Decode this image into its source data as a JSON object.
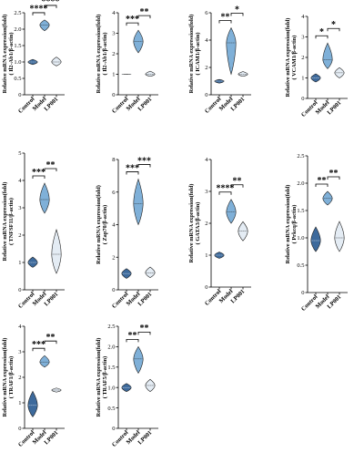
{
  "chart_data": [
    {
      "type": "violin",
      "ylabel": "Relative mRNA expression(fold)",
      "ylabel2": "( Il2-Ab1/β-actin)",
      "categories": [
        "Control",
        "Model",
        "LP001"
      ],
      "ylim": [
        0,
        2.5
      ],
      "yticks": [
        "0",
        "0.5",
        "1.0",
        "1.5",
        "2.0",
        "2.5"
      ],
      "colors": [
        "#3d6a9c",
        "#7fb0d8",
        "#e4ecf4"
      ],
      "series": [
        {
          "name": "Control",
          "min": 0.92,
          "median": 1.0,
          "max": 1.08
        },
        {
          "name": "Model",
          "min": 1.95,
          "median": 2.13,
          "max": 2.28
        },
        {
          "name": "LP001",
          "min": 0.88,
          "median": 1.0,
          "max": 1.15
        }
      ],
      "significance": [
        {
          "from": 0,
          "to": 1,
          "label": "****"
        },
        {
          "from": 1,
          "to": 2,
          "label": "****"
        }
      ]
    },
    {
      "type": "violin",
      "ylabel": "Relative mRNA expression(fold)",
      "ylabel2": "( Il2-Ab1/β-actin)",
      "categories": [
        "Control",
        "Model",
        "LP001"
      ],
      "ylim": [
        0,
        4
      ],
      "yticks": [
        "0",
        "1",
        "2",
        "3",
        "4"
      ],
      "colors": [
        "#3d6a9c",
        "#7fb0d8",
        "#e4ecf4"
      ],
      "series": [
        {
          "name": "Control",
          "min": 0.99,
          "median": 1.0,
          "max": 1.01
        },
        {
          "name": "Model",
          "min": 2.05,
          "median": 2.6,
          "max": 3.15
        },
        {
          "name": "LP001",
          "min": 0.9,
          "median": 1.0,
          "max": 1.15
        }
      ],
      "significance": [
        {
          "from": 0,
          "to": 1,
          "label": "***"
        },
        {
          "from": 1,
          "to": 2,
          "label": "**"
        }
      ]
    },
    {
      "type": "violin",
      "ylabel": "Relative mRNA expression(fold)",
      "ylabel2": "( ICAM1/β-actin)",
      "categories": [
        "Control",
        "Model",
        "LP001"
      ],
      "ylim": [
        0,
        6
      ],
      "yticks": [
        "0",
        "2",
        "4",
        "6"
      ],
      "colors": [
        "#3d6a9c",
        "#7fb0d8",
        "#e4ecf4"
      ],
      "series": [
        {
          "name": "Control",
          "min": 0.85,
          "median": 1.0,
          "max": 1.12
        },
        {
          "name": "Model",
          "min": 1.5,
          "median": 3.8,
          "max": 4.9
        },
        {
          "name": "LP001",
          "min": 1.35,
          "median": 1.5,
          "max": 1.7
        }
      ],
      "significance": [
        {
          "from": 0,
          "to": 1,
          "label": "**"
        },
        {
          "from": 1,
          "to": 2,
          "label": "*"
        }
      ]
    },
    {
      "type": "violin",
      "ylabel": "Relative mRNA expression(fold)",
      "ylabel2": "( VCAM1/β-actin)",
      "categories": [
        "Control",
        "Model",
        "LP001"
      ],
      "ylim": [
        0,
        4
      ],
      "yticks": [
        "0",
        "1",
        "2",
        "3",
        "4"
      ],
      "colors": [
        "#3d6a9c",
        "#7fb0d8",
        "#e4ecf4"
      ],
      "series": [
        {
          "name": "Control",
          "min": 0.8,
          "median": 1.0,
          "max": 1.2
        },
        {
          "name": "Model",
          "min": 1.45,
          "median": 1.9,
          "max": 2.7
        },
        {
          "name": "LP001",
          "min": 1.0,
          "median": 1.25,
          "max": 1.5
        }
      ],
      "significance": [
        {
          "from": 0,
          "to": 1,
          "label": "*"
        },
        {
          "from": 1,
          "to": 2,
          "label": "*"
        }
      ]
    },
    {
      "type": "violin",
      "ylabel": "Relative mRNA expression(fold)",
      "ylabel2": "( TNFSF11/β-actin)",
      "categories": [
        "Control",
        "Model",
        "LP001"
      ],
      "ylim": [
        0,
        5
      ],
      "yticks": [
        "0",
        "1",
        "2",
        "3",
        "4",
        "5"
      ],
      "colors": [
        "#3d6a9c",
        "#7fb0d8",
        "#e4ecf4"
      ],
      "series": [
        {
          "name": "Control",
          "min": 0.82,
          "median": 1.0,
          "max": 1.2
        },
        {
          "name": "Model",
          "min": 2.8,
          "median": 3.3,
          "max": 3.9
        },
        {
          "name": "LP001",
          "min": 0.6,
          "median": 1.3,
          "max": 2.2
        }
      ],
      "significance": [
        {
          "from": 0,
          "to": 1,
          "label": "***"
        },
        {
          "from": 1,
          "to": 2,
          "label": "**"
        }
      ]
    },
    {
      "type": "violin",
      "ylabel": "Relative mRNA expression(fold)",
      "ylabel2": "( Zap70/β-actin)",
      "categories": [
        "Control",
        "Model",
        "LP001"
      ],
      "ylim": [
        0,
        8
      ],
      "yticks": [
        "0",
        "2",
        "4",
        "6",
        "8"
      ],
      "colors": [
        "#3d6a9c",
        "#7fb0d8",
        "#e4ecf4"
      ],
      "series": [
        {
          "name": "Control",
          "min": 0.7,
          "median": 1.0,
          "max": 1.3
        },
        {
          "name": "Model",
          "min": 4.0,
          "median": 5.3,
          "max": 6.8
        },
        {
          "name": "LP001",
          "min": 0.75,
          "median": 1.05,
          "max": 1.4
        }
      ],
      "significance": [
        {
          "from": 0,
          "to": 1,
          "label": "***"
        },
        {
          "from": 1,
          "to": 2,
          "label": "***"
        }
      ]
    },
    {
      "type": "violin",
      "ylabel": "Relative mRNA expression(fold)",
      "ylabel2": "( GATA3/β-actin)",
      "categories": [
        "Control",
        "Model",
        "LP001"
      ],
      "ylim": [
        0,
        4
      ],
      "yticks": [
        "0",
        "1",
        "2",
        "3",
        "4"
      ],
      "colors": [
        "#3d6a9c",
        "#7fb0d8",
        "#e4ecf4"
      ],
      "series": [
        {
          "name": "Control",
          "min": 0.9,
          "median": 1.0,
          "max": 1.1
        },
        {
          "name": "Model",
          "min": 2.0,
          "median": 2.35,
          "max": 2.75
        },
        {
          "name": "LP001",
          "min": 1.45,
          "median": 1.75,
          "max": 2.05
        }
      ],
      "significance": [
        {
          "from": 0,
          "to": 1,
          "label": "****"
        },
        {
          "from": 1,
          "to": 2,
          "label": "**"
        }
      ]
    },
    {
      "type": "violin",
      "ylabel": "Relative mRNA expression(fold)",
      "ylabel2": "( Prkcq/β-actin)",
      "categories": [
        "Control",
        "Model",
        "LP001"
      ],
      "ylim": [
        0,
        2.5
      ],
      "yticks": [
        "0",
        "0.5",
        "1.0",
        "1.5",
        "2.0",
        "2.5"
      ],
      "colors": [
        "#3d6a9c",
        "#7fb0d8",
        "#e4ecf4"
      ],
      "series": [
        {
          "name": "Control",
          "min": 0.75,
          "median": 0.95,
          "max": 1.2
        },
        {
          "name": "Model",
          "min": 1.6,
          "median": 1.72,
          "max": 1.85
        },
        {
          "name": "LP001",
          "min": 0.75,
          "median": 1.0,
          "max": 1.3
        }
      ],
      "significance": [
        {
          "from": 0,
          "to": 1,
          "label": "**"
        },
        {
          "from": 1,
          "to": 2,
          "label": "**"
        }
      ]
    },
    {
      "type": "violin",
      "ylabel": "Relative mRNA expression(fold)",
      "ylabel2": "( TRAF1/β-actin)",
      "categories": [
        "Control",
        "Model",
        "LP001"
      ],
      "ylim": [
        0,
        4
      ],
      "yticks": [
        "0",
        "1",
        "2",
        "3",
        "4"
      ],
      "colors": [
        "#3d6a9c",
        "#7fb0d8",
        "#e4ecf4"
      ],
      "series": [
        {
          "name": "Control",
          "min": 0.45,
          "median": 0.9,
          "max": 1.45
        },
        {
          "name": "Model",
          "min": 2.4,
          "median": 2.6,
          "max": 2.85
        },
        {
          "name": "LP001",
          "min": 1.42,
          "median": 1.5,
          "max": 1.58
        }
      ],
      "significance": [
        {
          "from": 0,
          "to": 1,
          "label": "***"
        },
        {
          "from": 1,
          "to": 2,
          "label": "**"
        }
      ]
    },
    {
      "type": "violin",
      "ylabel": "Relative mRNA expression(fold)",
      "ylabel2": "( TRAF5/β-actin)",
      "categories": [
        "Control",
        "Model",
        "LP001"
      ],
      "ylim": [
        0,
        2.5
      ],
      "yticks": [
        "0",
        "0.5",
        "1.0",
        "1.5",
        "2.0",
        "2.5"
      ],
      "colors": [
        "#3d6a9c",
        "#7fb0d8",
        "#e4ecf4"
      ],
      "series": [
        {
          "name": "Control",
          "min": 0.9,
          "median": 1.0,
          "max": 1.1
        },
        {
          "name": "Model",
          "min": 1.35,
          "median": 1.7,
          "max": 2.0
        },
        {
          "name": "LP001",
          "min": 0.9,
          "median": 1.05,
          "max": 1.2
        }
      ],
      "significance": [
        {
          "from": 0,
          "to": 1,
          "label": "**"
        },
        {
          "from": 1,
          "to": 2,
          "label": "**"
        }
      ]
    }
  ]
}
